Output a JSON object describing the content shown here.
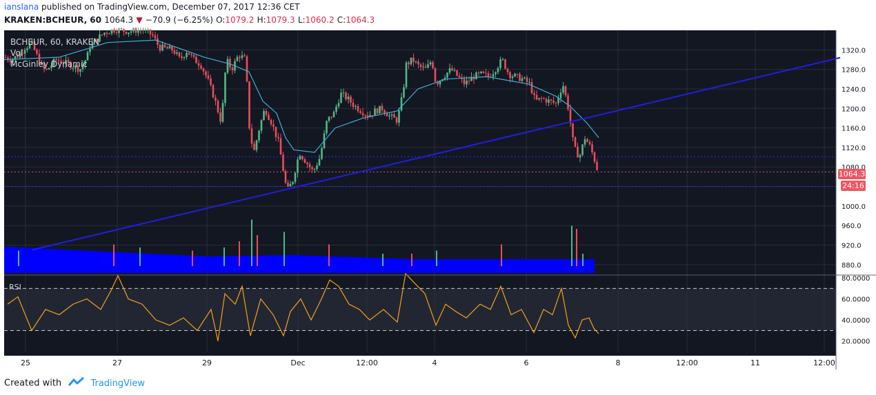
{
  "header": {
    "user": "ianslana",
    "published_text": "published on TradingView.com, December 07, 2017 12:36 CET",
    "symbol_line": "KRAKEN:BCHEUR, 60",
    "last": "1064.3",
    "change": "−70.9 (−6.25%)",
    "o_label": "O:",
    "o_value": "1079.2",
    "h_label": "H:",
    "h_value": "1079.3",
    "l_label": "L:",
    "l_value": "1060.2",
    "c_label": "C:",
    "c_value": "1064.3"
  },
  "legend": {
    "symbol": "BCHEUR, 60, KRAKEN",
    "vol": "Vol",
    "indicator": "McGinley Dynamic",
    "rsi": "RSI"
  },
  "price_badge": "1064.3",
  "countdown_badge": "24:16",
  "footer": {
    "created_with": "Created with",
    "brand": "TradingView"
  },
  "colors": {
    "background": "#131722",
    "up_candle": "#53b987",
    "down_candle": "#eb4d5c",
    "mcginley": "#3cb0d8",
    "trendline": "#1f1fe0",
    "volume_area": "#0000ff",
    "rsi_line": "#f6a11b",
    "price_badge": "#f05562"
  },
  "chart_data": [
    {
      "type": "candlestick",
      "title": "BCHEUR, 60, KRAKEN",
      "x_ticks": [
        "25",
        "27",
        "29",
        "Dec",
        "12:00",
        "4",
        "6",
        "8",
        "12:00",
        "11",
        "12:00"
      ],
      "y_ticks": [
        "1320.0",
        "1280.0",
        "1240.0",
        "1200.0",
        "1160.0",
        "1120.0",
        "1080.0",
        "1040.0",
        "1000.0",
        "960.0",
        "920.0",
        "880.0"
      ],
      "ylim": [
        860,
        1360
      ],
      "last_price": 1064.3,
      "close_path": [
        {
          "t": 0,
          "c": 1305
        },
        {
          "t": 10,
          "c": 1300
        },
        {
          "t": 22,
          "c": 1310
        },
        {
          "t": 30,
          "c": 1325
        },
        {
          "t": 40,
          "c": 1332
        },
        {
          "t": 50,
          "c": 1300
        },
        {
          "t": 60,
          "c": 1275
        },
        {
          "t": 75,
          "c": 1300
        },
        {
          "t": 85,
          "c": 1295
        },
        {
          "t": 95,
          "c": 1290
        },
        {
          "t": 110,
          "c": 1280
        },
        {
          "t": 120,
          "c": 1305
        },
        {
          "t": 125,
          "c": 1330
        },
        {
          "t": 145,
          "c": 1355
        },
        {
          "t": 160,
          "c": 1362
        },
        {
          "t": 180,
          "c": 1358
        },
        {
          "t": 200,
          "c": 1362
        },
        {
          "t": 215,
          "c": 1350
        },
        {
          "t": 225,
          "c": 1325
        },
        {
          "t": 245,
          "c": 1320
        },
        {
          "t": 255,
          "c": 1300
        },
        {
          "t": 265,
          "c": 1318
        },
        {
          "t": 275,
          "c": 1300
        },
        {
          "t": 285,
          "c": 1290
        },
        {
          "t": 295,
          "c": 1260
        },
        {
          "t": 305,
          "c": 1220
        },
        {
          "t": 315,
          "c": 1170
        },
        {
          "t": 322,
          "c": 1300
        },
        {
          "t": 330,
          "c": 1280
        },
        {
          "t": 340,
          "c": 1310
        },
        {
          "t": 350,
          "c": 1300
        },
        {
          "t": 356,
          "c": 1150
        },
        {
          "t": 362,
          "c": 1110
        },
        {
          "t": 370,
          "c": 1160
        },
        {
          "t": 378,
          "c": 1200
        },
        {
          "t": 388,
          "c": 1170
        },
        {
          "t": 398,
          "c": 1130
        },
        {
          "t": 405,
          "c": 1070
        },
        {
          "t": 410,
          "c": 1030
        },
        {
          "t": 418,
          "c": 1050
        },
        {
          "t": 428,
          "c": 1110
        },
        {
          "t": 438,
          "c": 1090
        },
        {
          "t": 448,
          "c": 1070
        },
        {
          "t": 458,
          "c": 1100
        },
        {
          "t": 468,
          "c": 1175
        },
        {
          "t": 478,
          "c": 1190
        },
        {
          "t": 488,
          "c": 1230
        },
        {
          "t": 498,
          "c": 1220
        },
        {
          "t": 508,
          "c": 1205
        },
        {
          "t": 518,
          "c": 1195
        },
        {
          "t": 528,
          "c": 1185
        },
        {
          "t": 538,
          "c": 1195
        },
        {
          "t": 548,
          "c": 1200
        },
        {
          "t": 558,
          "c": 1185
        },
        {
          "t": 570,
          "c": 1175
        },
        {
          "t": 578,
          "c": 1230
        },
        {
          "t": 583,
          "c": 1290
        },
        {
          "t": 592,
          "c": 1300
        },
        {
          "t": 602,
          "c": 1285
        },
        {
          "t": 612,
          "c": 1280
        },
        {
          "t": 620,
          "c": 1300
        },
        {
          "t": 626,
          "c": 1250
        },
        {
          "t": 636,
          "c": 1265
        },
        {
          "t": 648,
          "c": 1280
        },
        {
          "t": 658,
          "c": 1265
        },
        {
          "t": 668,
          "c": 1250
        },
        {
          "t": 680,
          "c": 1265
        },
        {
          "t": 692,
          "c": 1270
        },
        {
          "t": 702,
          "c": 1265
        },
        {
          "t": 712,
          "c": 1280
        },
        {
          "t": 722,
          "c": 1300
        },
        {
          "t": 732,
          "c": 1270
        },
        {
          "t": 742,
          "c": 1265
        },
        {
          "t": 752,
          "c": 1260
        },
        {
          "t": 762,
          "c": 1250
        },
        {
          "t": 770,
          "c": 1215
        },
        {
          "t": 780,
          "c": 1220
        },
        {
          "t": 790,
          "c": 1215
        },
        {
          "t": 800,
          "c": 1210
        },
        {
          "t": 810,
          "c": 1250
        },
        {
          "t": 818,
          "c": 1200
        },
        {
          "t": 826,
          "c": 1120
        },
        {
          "t": 834,
          "c": 1100
        },
        {
          "t": 842,
          "c": 1140
        },
        {
          "t": 850,
          "c": 1120
        },
        {
          "t": 857,
          "c": 1090
        },
        {
          "t": 862,
          "c": 1064.3
        }
      ],
      "series": [
        {
          "name": "McGinley Dynamic",
          "type": "line",
          "values": [
            {
              "t": 0,
              "v": 1300
            },
            {
              "t": 80,
              "v": 1305
            },
            {
              "t": 150,
              "v": 1335
            },
            {
              "t": 220,
              "v": 1340
            },
            {
              "t": 290,
              "v": 1305
            },
            {
              "t": 330,
              "v": 1290
            },
            {
              "t": 355,
              "v": 1275
            },
            {
              "t": 375,
              "v": 1215
            },
            {
              "t": 395,
              "v": 1190
            },
            {
              "t": 408,
              "v": 1140
            },
            {
              "t": 420,
              "v": 1115
            },
            {
              "t": 450,
              "v": 1110
            },
            {
              "t": 480,
              "v": 1160
            },
            {
              "t": 520,
              "v": 1180
            },
            {
              "t": 570,
              "v": 1195
            },
            {
              "t": 600,
              "v": 1240
            },
            {
              "t": 640,
              "v": 1260
            },
            {
              "t": 700,
              "v": 1265
            },
            {
              "t": 760,
              "v": 1250
            },
            {
              "t": 800,
              "v": 1225
            },
            {
              "t": 820,
              "v": 1205
            },
            {
              "t": 845,
              "v": 1170
            },
            {
              "t": 862,
              "v": 1140
            }
          ]
        },
        {
          "name": "Trend line",
          "type": "line",
          "values": [
            {
              "t": 40,
              "v": 910
            },
            {
              "t": 1212,
              "v": 1304
            }
          ]
        }
      ],
      "horizontal_levels": [
        1101,
        1070,
        1040
      ]
    },
    {
      "type": "bar",
      "title": "Vol",
      "volume_spikes": [
        {
          "t": 20,
          "v": 0.25
        },
        {
          "t": 158,
          "v": 0.35
        },
        {
          "t": 196,
          "v": 0.3
        },
        {
          "t": 272,
          "v": 0.25
        },
        {
          "t": 318,
          "v": 0.3
        },
        {
          "t": 340,
          "v": 0.4
        },
        {
          "t": 358,
          "v": 0.75
        },
        {
          "t": 366,
          "v": 0.5
        },
        {
          "t": 405,
          "v": 0.55
        },
        {
          "t": 470,
          "v": 0.35
        },
        {
          "t": 548,
          "v": 0.2
        },
        {
          "t": 590,
          "v": 0.2
        },
        {
          "t": 626,
          "v": 0.25
        },
        {
          "t": 720,
          "v": 0.35
        },
        {
          "t": 822,
          "v": 0.65
        },
        {
          "t": 829,
          "v": 0.6
        },
        {
          "t": 838,
          "v": 0.2
        }
      ]
    },
    {
      "type": "line",
      "title": "RSI",
      "y_ticks": [
        "80.0000",
        "60.0000",
        "40.0000",
        "20.0000"
      ],
      "ylim": [
        10,
        82
      ],
      "levels": [
        70,
        30
      ],
      "values": [
        {
          "t": 5,
          "v": 55
        },
        {
          "t": 20,
          "v": 62
        },
        {
          "t": 40,
          "v": 30
        },
        {
          "t": 60,
          "v": 50
        },
        {
          "t": 80,
          "v": 45
        },
        {
          "t": 100,
          "v": 55
        },
        {
          "t": 120,
          "v": 60
        },
        {
          "t": 140,
          "v": 50
        },
        {
          "t": 155,
          "v": 68
        },
        {
          "t": 165,
          "v": 82
        },
        {
          "t": 180,
          "v": 60
        },
        {
          "t": 200,
          "v": 55
        },
        {
          "t": 220,
          "v": 40
        },
        {
          "t": 240,
          "v": 35
        },
        {
          "t": 260,
          "v": 42
        },
        {
          "t": 280,
          "v": 30
        },
        {
          "t": 300,
          "v": 50
        },
        {
          "t": 310,
          "v": 20
        },
        {
          "t": 320,
          "v": 65
        },
        {
          "t": 335,
          "v": 55
        },
        {
          "t": 345,
          "v": 72
        },
        {
          "t": 357,
          "v": 25
        },
        {
          "t": 372,
          "v": 60
        },
        {
          "t": 390,
          "v": 45
        },
        {
          "t": 405,
          "v": 25
        },
        {
          "t": 415,
          "v": 48
        },
        {
          "t": 430,
          "v": 60
        },
        {
          "t": 445,
          "v": 40
        },
        {
          "t": 460,
          "v": 60
        },
        {
          "t": 472,
          "v": 78
        },
        {
          "t": 485,
          "v": 72
        },
        {
          "t": 500,
          "v": 55
        },
        {
          "t": 515,
          "v": 50
        },
        {
          "t": 530,
          "v": 40
        },
        {
          "t": 550,
          "v": 50
        },
        {
          "t": 570,
          "v": 38
        },
        {
          "t": 582,
          "v": 84
        },
        {
          "t": 595,
          "v": 75
        },
        {
          "t": 610,
          "v": 65
        },
        {
          "t": 626,
          "v": 35
        },
        {
          "t": 640,
          "v": 55
        },
        {
          "t": 655,
          "v": 48
        },
        {
          "t": 670,
          "v": 42
        },
        {
          "t": 690,
          "v": 55
        },
        {
          "t": 705,
          "v": 50
        },
        {
          "t": 720,
          "v": 72
        },
        {
          "t": 735,
          "v": 45
        },
        {
          "t": 750,
          "v": 50
        },
        {
          "t": 768,
          "v": 28
        },
        {
          "t": 782,
          "v": 50
        },
        {
          "t": 795,
          "v": 45
        },
        {
          "t": 808,
          "v": 70
        },
        {
          "t": 818,
          "v": 35
        },
        {
          "t": 828,
          "v": 23
        },
        {
          "t": 838,
          "v": 40
        },
        {
          "t": 848,
          "v": 42
        },
        {
          "t": 855,
          "v": 32
        },
        {
          "t": 862,
          "v": 27
        }
      ]
    }
  ]
}
